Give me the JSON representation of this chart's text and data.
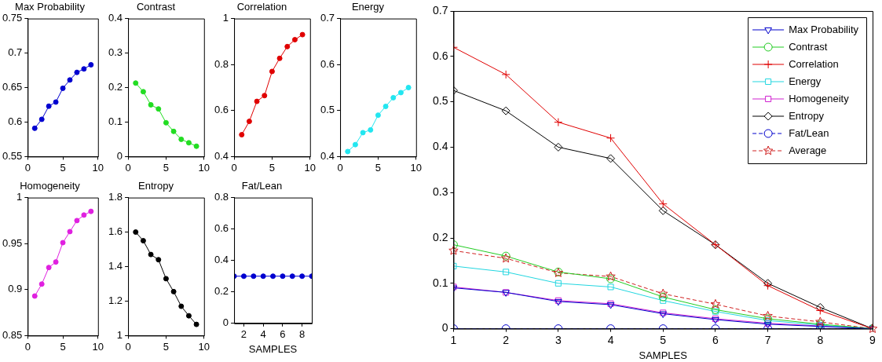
{
  "chart_data": [
    {
      "type": "line",
      "title": "Max Probability",
      "x": [
        1,
        2,
        3,
        4,
        5,
        6,
        7,
        8,
        9
      ],
      "xlim": [
        0,
        10
      ],
      "xticks": [
        0,
        5,
        10
      ],
      "ylim": [
        0.55,
        0.75
      ],
      "yticks": [
        0.55,
        0.6,
        0.65,
        0.7,
        0.75
      ],
      "marker": "circle",
      "grid": false,
      "series": [
        {
          "color": "#0000d0",
          "values": [
            0.591,
            0.604,
            0.623,
            0.629,
            0.649,
            0.661,
            0.672,
            0.677,
            0.683
          ]
        }
      ]
    },
    {
      "type": "line",
      "title": "Contrast",
      "x": [
        1,
        2,
        3,
        4,
        5,
        6,
        7,
        8,
        9
      ],
      "xlim": [
        0,
        10
      ],
      "xticks": [
        0,
        5,
        10
      ],
      "ylim": [
        0,
        0.4
      ],
      "yticks": [
        0,
        0.1,
        0.2,
        0.3,
        0.4
      ],
      "marker": "circle",
      "grid": false,
      "series": [
        {
          "color": "#22dd22",
          "values": [
            0.213,
            0.188,
            0.15,
            0.138,
            0.098,
            0.073,
            0.05,
            0.04,
            0.03
          ]
        }
      ]
    },
    {
      "type": "line",
      "title": "Correlation",
      "x": [
        1,
        2,
        3,
        4,
        5,
        6,
        7,
        8,
        9
      ],
      "xlim": [
        0,
        10
      ],
      "xticks": [
        0,
        5,
        10
      ],
      "ylim": [
        0.4,
        1
      ],
      "yticks": [
        0.4,
        0.6,
        0.8,
        1
      ],
      "marker": "circle",
      "grid": false,
      "series": [
        {
          "color": "#e00000",
          "values": [
            0.495,
            0.553,
            0.64,
            0.665,
            0.77,
            0.827,
            0.878,
            0.908,
            0.93
          ]
        }
      ]
    },
    {
      "type": "line",
      "title": "Energy",
      "x": [
        1,
        2,
        3,
        4,
        5,
        6,
        7,
        8,
        9
      ],
      "xlim": [
        0,
        10
      ],
      "xticks": [
        0,
        5,
        10
      ],
      "ylim": [
        0.4,
        0.7
      ],
      "yticks": [
        0.4,
        0.5,
        0.6,
        0.7
      ],
      "marker": "circle",
      "grid": false,
      "series": [
        {
          "color": "#22e6f0",
          "values": [
            0.411,
            0.426,
            0.452,
            0.458,
            0.49,
            0.509,
            0.528,
            0.539,
            0.55
          ]
        }
      ]
    },
    {
      "type": "line",
      "title": "Homogeneity",
      "x": [
        1,
        2,
        3,
        4,
        5,
        6,
        7,
        8,
        9
      ],
      "xlim": [
        0,
        10
      ],
      "xticks": [
        0,
        5,
        10
      ],
      "ylim": [
        0.85,
        1
      ],
      "yticks": [
        0.85,
        0.9,
        0.95,
        1
      ],
      "marker": "circle",
      "grid": false,
      "series": [
        {
          "color": "#e020e0",
          "values": [
            0.893,
            0.906,
            0.924,
            0.93,
            0.951,
            0.963,
            0.975,
            0.981,
            0.985
          ]
        }
      ]
    },
    {
      "type": "line",
      "title": "Entropy",
      "x": [
        1,
        2,
        3,
        4,
        5,
        6,
        7,
        8,
        9
      ],
      "xlim": [
        0,
        10
      ],
      "xticks": [
        0,
        5,
        10
      ],
      "ylim": [
        1,
        1.8
      ],
      "yticks": [
        1,
        1.2,
        1.4,
        1.6,
        1.8
      ],
      "marker": "circle",
      "grid": false,
      "series": [
        {
          "color": "#000000",
          "values": [
            1.6,
            1.55,
            1.47,
            1.44,
            1.33,
            1.255,
            1.17,
            1.115,
            1.065
          ]
        }
      ]
    },
    {
      "type": "line",
      "title": "Fat/Lean",
      "xlabel": "SAMPLES",
      "x": [
        1,
        2,
        3,
        4,
        5,
        6,
        7,
        8,
        9
      ],
      "xlim": [
        1,
        9
      ],
      "xticks": [
        2,
        4,
        6,
        8
      ],
      "ylim": [
        0,
        0.8
      ],
      "yticks": [
        0,
        0.2,
        0.4,
        0.6,
        0.8
      ],
      "marker": "circle",
      "grid": false,
      "series": [
        {
          "color": "#0000d0",
          "values": [
            0.3,
            0.3,
            0.3,
            0.3,
            0.3,
            0.3,
            0.3,
            0.3,
            0.3
          ]
        }
      ]
    },
    {
      "type": "line",
      "xlabel": "SAMPLES",
      "x": [
        1,
        2,
        3,
        4,
        5,
        6,
        7,
        8,
        9
      ],
      "xlim": [
        1,
        9
      ],
      "xticks": [
        1,
        2,
        3,
        4,
        5,
        6,
        7,
        8,
        9
      ],
      "ylim": [
        0,
        0.7
      ],
      "yticks": [
        0,
        0.1,
        0.2,
        0.3,
        0.4,
        0.5,
        0.6,
        0.7
      ],
      "grid": false,
      "legend": "top right",
      "series": [
        {
          "name": "Max Probability",
          "color": "#0000cc",
          "marker": "triangle",
          "line_style": "solid",
          "values": [
            0.09,
            0.08,
            0.06,
            0.053,
            0.033,
            0.02,
            0.01,
            0.005,
            0
          ]
        },
        {
          "name": "Contrast",
          "color": "#22cc22",
          "marker": "circle",
          "line_style": "solid",
          "values": [
            0.185,
            0.16,
            0.125,
            0.11,
            0.07,
            0.042,
            0.022,
            0.01,
            0
          ]
        },
        {
          "name": "Correlation",
          "color": "#e00000",
          "marker": "cross",
          "line_style": "solid",
          "values": [
            0.62,
            0.56,
            0.455,
            0.42,
            0.275,
            0.185,
            0.095,
            0.04,
            0
          ]
        },
        {
          "name": "Energy",
          "color": "#22d6e0",
          "marker": "square",
          "line_style": "solid",
          "values": [
            0.138,
            0.125,
            0.1,
            0.092,
            0.062,
            0.038,
            0.018,
            0.008,
            0
          ]
        },
        {
          "name": "Homogeneity",
          "color": "#d020d0",
          "marker": "square",
          "line_style": "solid",
          "values": [
            0.092,
            0.08,
            0.062,
            0.055,
            0.035,
            0.022,
            0.012,
            0.006,
            0
          ]
        },
        {
          "name": "Entropy",
          "color": "#000000",
          "marker": "diamond",
          "line_style": "solid",
          "values": [
            0.525,
            0.48,
            0.4,
            0.375,
            0.26,
            0.185,
            0.1,
            0.047,
            0
          ]
        },
        {
          "name": "Fat/Lean",
          "color": "#0000cc",
          "marker": "circle",
          "line_style": "dashed",
          "values": [
            0,
            0,
            0,
            0,
            0,
            0,
            0,
            0,
            0
          ]
        },
        {
          "name": "Average",
          "color": "#d02020",
          "marker": "star",
          "line_style": "dashed",
          "values": [
            0.172,
            0.155,
            0.123,
            0.115,
            0.077,
            0.054,
            0.028,
            0.015,
            0
          ]
        }
      ]
    }
  ]
}
